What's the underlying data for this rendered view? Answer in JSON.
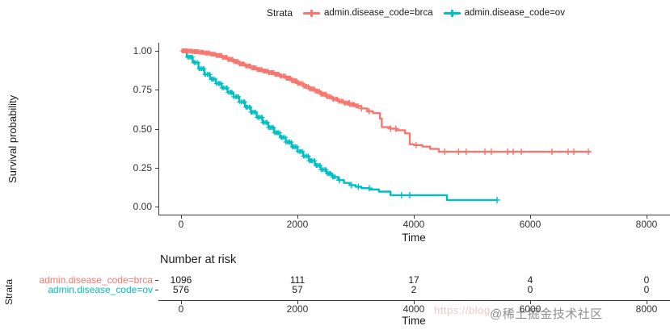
{
  "figure": {
    "type_note": "Kaplan-Meier survival plot with number-at-risk table",
    "background": "#ffffff"
  },
  "legend": {
    "title": "Strata",
    "items": [
      {
        "label": "admin.disease_code=brca",
        "color": "#F8766D"
      },
      {
        "label": "admin.disease_code=ov",
        "color": "#00BFC4"
      }
    ]
  },
  "watermark": {
    "url_text": "https://blog.c",
    "community_text": "@稀土掘金技术社区"
  },
  "chart_data": {
    "type": "line",
    "subtype": "kaplan-meier-step",
    "xlabel": "Time",
    "ylabel": "Survival probability",
    "xlim": [
      0,
      8400
    ],
    "ylim": [
      0,
      1
    ],
    "xticks": [
      0,
      2000,
      4000,
      6000,
      8000
    ],
    "yticks": [
      {
        "value": 1.0,
        "label": "1.00"
      },
      {
        "value": 0.75,
        "label": "0.75"
      },
      {
        "value": 0.5,
        "label": "0.50"
      },
      {
        "value": 0.25,
        "label": "0.25"
      },
      {
        "value": 0.0,
        "label": "0.00"
      }
    ],
    "grid": false,
    "legend_position": "top",
    "series": [
      {
        "name": "admin.disease_code=brca",
        "color": "#F8766D",
        "points": [
          [
            0,
            1.0
          ],
          [
            100,
            0.998
          ],
          [
            200,
            0.995
          ],
          [
            300,
            0.991
          ],
          [
            400,
            0.986
          ],
          [
            500,
            0.979
          ],
          [
            600,
            0.97
          ],
          [
            700,
            0.958
          ],
          [
            800,
            0.945
          ],
          [
            900,
            0.931
          ],
          [
            1000,
            0.916
          ],
          [
            1100,
            0.903
          ],
          [
            1200,
            0.891
          ],
          [
            1300,
            0.88
          ],
          [
            1400,
            0.87
          ],
          [
            1500,
            0.86
          ],
          [
            1600,
            0.85
          ],
          [
            1700,
            0.838
          ],
          [
            1800,
            0.824
          ],
          [
            1900,
            0.808
          ],
          [
            2000,
            0.79
          ],
          [
            2100,
            0.772
          ],
          [
            2200,
            0.755
          ],
          [
            2300,
            0.74
          ],
          [
            2400,
            0.722
          ],
          [
            2500,
            0.705
          ],
          [
            2600,
            0.69
          ],
          [
            2700,
            0.676
          ],
          [
            2800,
            0.664
          ],
          [
            2900,
            0.655
          ],
          [
            3000,
            0.646
          ],
          [
            3100,
            0.63
          ],
          [
            3200,
            0.612
          ],
          [
            3300,
            0.6
          ],
          [
            3420,
            0.565
          ],
          [
            3450,
            0.51
          ],
          [
            3600,
            0.5
          ],
          [
            3700,
            0.49
          ],
          [
            3850,
            0.47
          ],
          [
            3930,
            0.4
          ],
          [
            4000,
            0.395
          ],
          [
            4150,
            0.385
          ],
          [
            4280,
            0.37
          ],
          [
            4430,
            0.352
          ],
          [
            7030,
            0.352
          ]
        ],
        "censor_ticks": [
          2890,
          3100,
          3230,
          3600,
          3690,
          4040,
          4530,
          4770,
          4900,
          5222,
          5333,
          5611,
          5708,
          5847,
          6375,
          6653,
          6750,
          7000
        ],
        "dense_censor": {
          "from": 20,
          "to": 3050,
          "count": 230
        }
      },
      {
        "name": "admin.disease_code=ov",
        "color": "#00BFC4",
        "points": [
          [
            0,
            1.0
          ],
          [
            100,
            0.96
          ],
          [
            200,
            0.925
          ],
          [
            300,
            0.885
          ],
          [
            400,
            0.848
          ],
          [
            500,
            0.818
          ],
          [
            600,
            0.79
          ],
          [
            700,
            0.762
          ],
          [
            800,
            0.733
          ],
          [
            900,
            0.705
          ],
          [
            1000,
            0.672
          ],
          [
            1100,
            0.639
          ],
          [
            1200,
            0.606
          ],
          [
            1300,
            0.573
          ],
          [
            1400,
            0.54
          ],
          [
            1500,
            0.507
          ],
          [
            1600,
            0.474
          ],
          [
            1700,
            0.444
          ],
          [
            1800,
            0.414
          ],
          [
            1900,
            0.384
          ],
          [
            2000,
            0.354
          ],
          [
            2100,
            0.324
          ],
          [
            2200,
            0.294
          ],
          [
            2300,
            0.264
          ],
          [
            2400,
            0.237
          ],
          [
            2500,
            0.212
          ],
          [
            2600,
            0.19
          ],
          [
            2700,
            0.17
          ],
          [
            2800,
            0.152
          ],
          [
            2900,
            0.138
          ],
          [
            3000,
            0.127
          ],
          [
            3100,
            0.118
          ],
          [
            3240,
            0.11
          ],
          [
            3400,
            0.096
          ],
          [
            3600,
            0.073
          ],
          [
            4570,
            0.042
          ],
          [
            5430,
            0.042
          ]
        ],
        "censor_ticks": [
          2722,
          2930,
          3047,
          3236,
          3790,
          3930,
          5430
        ],
        "dense_censor": {
          "from": 20,
          "to": 2650,
          "count": 150
        }
      }
    ],
    "risk_table": {
      "title": "Number at risk",
      "ylabel": "Strata",
      "xlabel": "Time",
      "times": [
        0,
        2000,
        4000,
        6000,
        8000
      ],
      "rows": [
        {
          "label": "admin.disease_code=brca",
          "color": "#F8766D",
          "counts": [
            "1096",
            "111",
            "17",
            "4",
            "0"
          ]
        },
        {
          "label": "admin.disease_code=ov",
          "color": "#00BFC4",
          "counts": [
            "576",
            "57",
            "2",
            "0",
            "0"
          ]
        }
      ]
    }
  }
}
